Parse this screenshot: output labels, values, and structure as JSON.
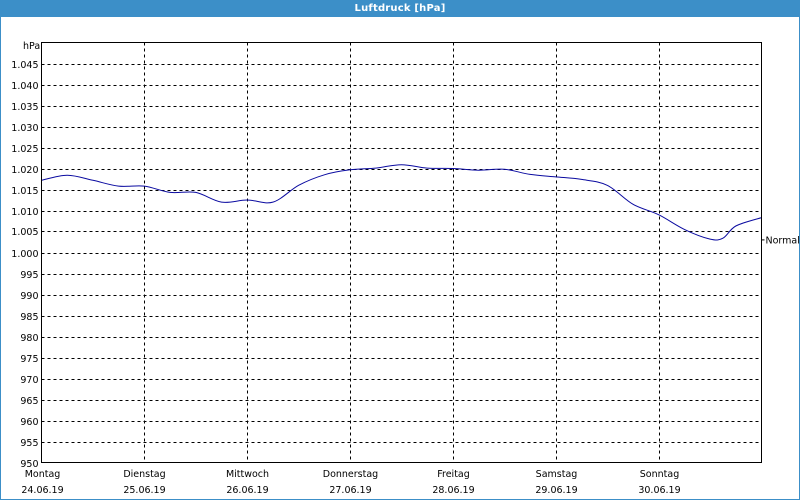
{
  "window": {
    "title": "Luftdruck [hPa]"
  },
  "chart_data": {
    "type": "line",
    "title": "Luftdruck [hPa]",
    "ylabel": "hPa",
    "xlabel": "",
    "ylim": [
      950,
      1050
    ],
    "xlim": [
      "24.06.19",
      "01.07.19"
    ],
    "grid": true,
    "y_ticks": [
      "950",
      "955",
      "960",
      "965",
      "970",
      "975",
      "980",
      "985",
      "990",
      "995",
      "1.000",
      "1.005",
      "1.010",
      "1.015",
      "1.020",
      "1.025",
      "1.030",
      "1.035",
      "1.040",
      "1.045"
    ],
    "x_ticks": [
      {
        "day": "Montag",
        "date": "24.06.19"
      },
      {
        "day": "Dienstag",
        "date": "25.06.19"
      },
      {
        "day": "Mittwoch",
        "date": "26.06.19"
      },
      {
        "day": "Donnerstag",
        "date": "27.06.19"
      },
      {
        "day": "Freitag",
        "date": "28.06.19"
      },
      {
        "day": "Samstag",
        "date": "29.06.19"
      },
      {
        "day": "Sonntag",
        "date": "30.06.19"
      }
    ],
    "annotations": [
      {
        "text": "Normal",
        "value": 1003
      }
    ],
    "series": [
      {
        "color": "#0a0aa0",
        "x": [
          "24.06.19 00:00",
          "24.06.19 06:00",
          "24.06.19 12:00",
          "24.06.19 18:00",
          "25.06.19 00:00",
          "25.06.19 06:00",
          "25.06.19 12:00",
          "25.06.19 18:00",
          "26.06.19 00:00",
          "26.06.19 06:00",
          "26.06.19 12:00",
          "26.06.19 18:00",
          "27.06.19 00:00",
          "27.06.19 06:00",
          "27.06.19 12:00",
          "27.06.19 18:00",
          "28.06.19 00:00",
          "28.06.19 06:00",
          "28.06.19 12:00",
          "28.06.19 18:00",
          "29.06.19 00:00",
          "29.06.19 06:00",
          "29.06.19 12:00",
          "29.06.19 18:00",
          "30.06.19 00:00",
          "30.06.19 06:00",
          "30.06.19 12:00",
          "30.06.19 15:00",
          "30.06.19 18:00",
          "01.07.19 00:00"
        ],
        "values": [
          1017.2,
          1018.4,
          1017.2,
          1015.8,
          1015.8,
          1014.3,
          1014.3,
          1012.0,
          1012.5,
          1012.0,
          1016.0,
          1018.5,
          1019.7,
          1020.1,
          1020.9,
          1020.1,
          1020.0,
          1019.6,
          1019.8,
          1018.6,
          1018.0,
          1017.4,
          1016.0,
          1011.5,
          1009.0,
          1005.5,
          1003.2,
          1003.4,
          1006.3,
          1008.3
        ]
      }
    ]
  }
}
